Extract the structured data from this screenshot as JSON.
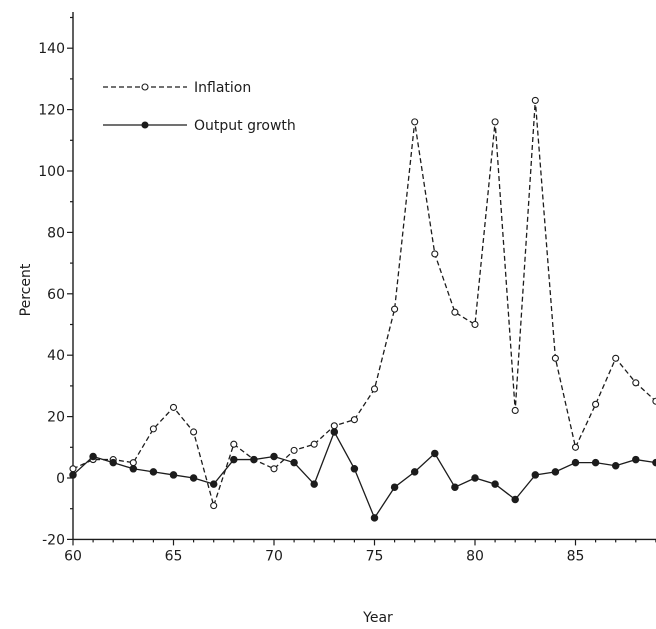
{
  "chart_data": {
    "type": "line",
    "title": "",
    "xlabel": "Year",
    "ylabel": "Percent",
    "xlim": [
      60,
      89
    ],
    "ylim": [
      -20,
      160
    ],
    "x_ticks": [
      60,
      65,
      70,
      75,
      80,
      85
    ],
    "y_ticks": [
      -20,
      0,
      20,
      40,
      60,
      80,
      100,
      120,
      140
    ],
    "grid": false,
    "legend_position": "top-left",
    "x": [
      60,
      61,
      62,
      63,
      64,
      65,
      66,
      67,
      68,
      69,
      70,
      71,
      72,
      73,
      74,
      75,
      76,
      77,
      78,
      79,
      80,
      81,
      82,
      83,
      84,
      85,
      86,
      87,
      88,
      89
    ],
    "series": [
      {
        "name": "Inflation",
        "style": "dashed",
        "marker": "open-circle",
        "color": "#1c1c1c",
        "values": [
          3,
          6,
          6,
          5,
          16,
          23,
          15,
          -9,
          11,
          6,
          3,
          9,
          11,
          17,
          19,
          29,
          55,
          116,
          73,
          54,
          50,
          116,
          22,
          123,
          39,
          10,
          24,
          39,
          31,
          25
        ]
      },
      {
        "name": "Output growth",
        "style": "solid",
        "marker": "filled-circle",
        "color": "#1c1c1c",
        "values": [
          1,
          7,
          5,
          3,
          2,
          1,
          0,
          -2,
          6,
          6,
          7,
          5,
          -2,
          15,
          3,
          -13,
          -3,
          2,
          8,
          -3,
          0,
          -2,
          -7,
          1,
          2,
          5,
          5,
          4,
          6,
          5
        ]
      }
    ]
  }
}
